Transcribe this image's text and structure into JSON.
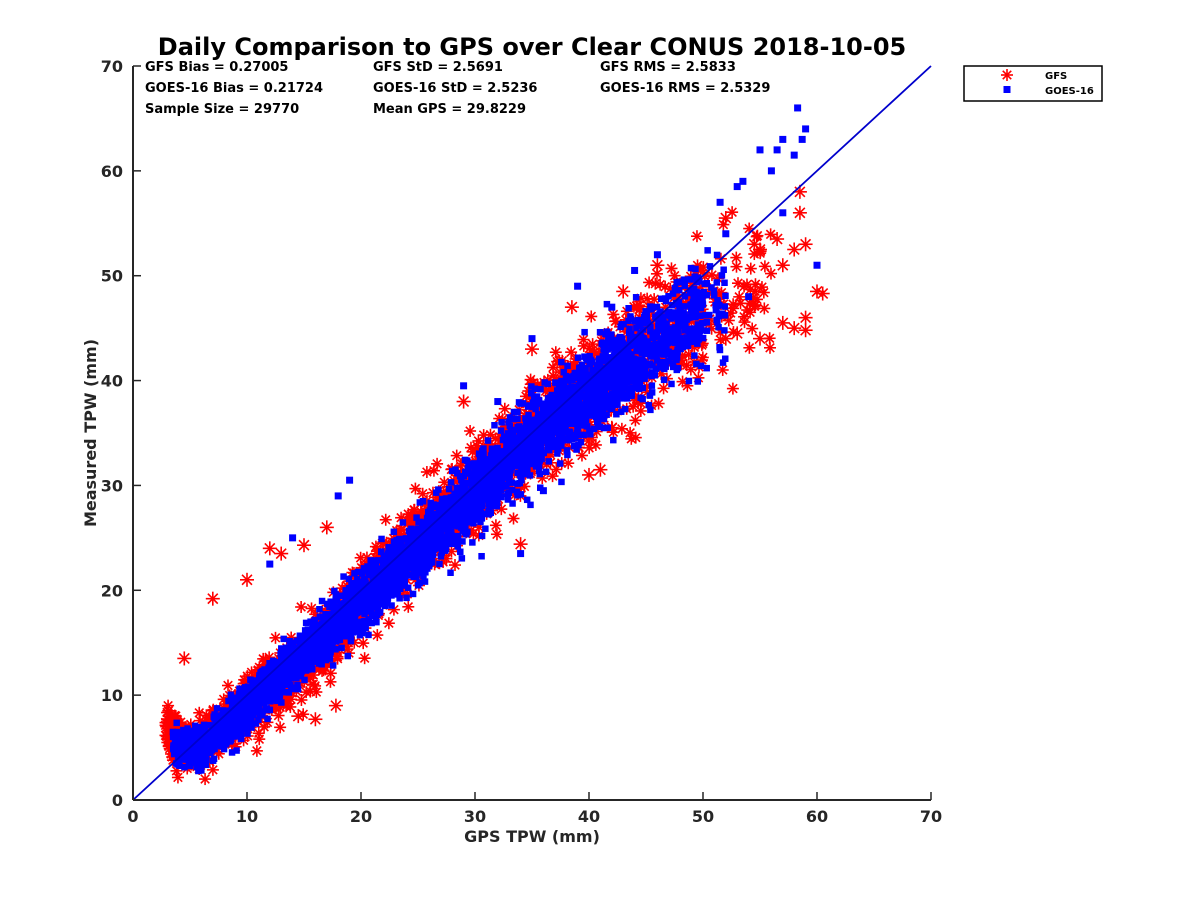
{
  "chart_data": {
    "type": "scatter",
    "title": "Daily Comparison to GPS over Clear CONUS 2018-10-05",
    "xlabel": "GPS TPW (mm)",
    "ylabel": "Measured TPW (mm)",
    "xlim": [
      0,
      70
    ],
    "ylim": [
      0,
      70
    ],
    "xticks": [
      "0",
      "10",
      "20",
      "30",
      "40",
      "50",
      "60",
      "70"
    ],
    "yticks": [
      "0",
      "10",
      "20",
      "30",
      "40",
      "50",
      "60",
      "70"
    ],
    "legend_position": "top-right-outside",
    "stats": [
      "GFS Bias = 0.27005",
      "GFS StD = 2.5691",
      "GFS RMS = 2.5833",
      "GOES-16 Bias = 0.21724",
      "GOES-16 StD = 2.5236",
      "GOES-16 RMS = 2.5329",
      "Sample Size = 29770",
      "Mean GPS = 29.8229"
    ],
    "reference_line": {
      "label": "1:1",
      "x": [
        0,
        70
      ],
      "y": [
        0,
        70
      ],
      "color": "#0000cc"
    },
    "series": [
      {
        "name": "GFS",
        "marker": "asterisk",
        "color": "#ff0000",
        "core_cloud": [
          [
            3,
            7
          ],
          [
            5,
            4.5
          ],
          [
            10,
            9
          ],
          [
            15,
            13
          ],
          [
            20,
            19
          ],
          [
            25,
            25
          ],
          [
            30,
            30
          ],
          [
            35,
            35
          ],
          [
            40,
            39
          ],
          [
            45,
            43
          ],
          [
            50,
            46
          ],
          [
            55,
            49
          ]
        ],
        "outliers": [
          [
            3,
            7
          ],
          [
            4.5,
            13.5
          ],
          [
            7,
            19.2
          ],
          [
            10,
            21
          ],
          [
            12,
            24
          ],
          [
            13,
            23.5
          ],
          [
            15,
            24.3
          ],
          [
            17,
            26
          ],
          [
            17.8,
            9
          ],
          [
            16,
            7.7
          ],
          [
            14.5,
            8
          ],
          [
            13.5,
            10
          ],
          [
            29,
            38
          ],
          [
            34,
            24.4
          ],
          [
            35,
            43
          ],
          [
            38.5,
            47
          ],
          [
            40,
            31
          ],
          [
            41,
            31.5
          ],
          [
            42,
            35.5
          ],
          [
            43,
            48.5
          ],
          [
            46,
            51
          ],
          [
            52,
            44
          ],
          [
            53,
            44.5
          ],
          [
            55,
            44
          ],
          [
            57,
            45.5
          ],
          [
            58,
            45
          ],
          [
            59,
            46
          ],
          [
            59,
            44.8
          ],
          [
            60,
            48.5
          ],
          [
            60.5,
            48.3
          ],
          [
            57,
            51
          ],
          [
            58,
            52.5
          ],
          [
            59,
            53
          ],
          [
            58.5,
            56
          ],
          [
            58.5,
            58
          ],
          [
            56.5,
            53.5
          ],
          [
            52,
            55.5
          ],
          [
            54.5,
            53
          ],
          [
            55,
            52.5
          ]
        ]
      },
      {
        "name": "GOES-16",
        "marker": "square",
        "color": "#0000ff",
        "core_cloud": [
          [
            4,
            5
          ],
          [
            6,
            5
          ],
          [
            10,
            9
          ],
          [
            15,
            14
          ],
          [
            20,
            19
          ],
          [
            25,
            24
          ],
          [
            30,
            29.5
          ],
          [
            35,
            34.5
          ],
          [
            40,
            39
          ],
          [
            45,
            43
          ],
          [
            50,
            47
          ]
        ],
        "outliers": [
          [
            4,
            4.5
          ],
          [
            12,
            22.5
          ],
          [
            14,
            25
          ],
          [
            18,
            29
          ],
          [
            19,
            30.5
          ],
          [
            29,
            39.5
          ],
          [
            32,
            38
          ],
          [
            34,
            23.5
          ],
          [
            35,
            44
          ],
          [
            39,
            49
          ],
          [
            42,
            47
          ],
          [
            44,
            50.5
          ],
          [
            46,
            52
          ],
          [
            52,
            54
          ],
          [
            51.5,
            57
          ],
          [
            53,
            58.5
          ],
          [
            53.5,
            59
          ],
          [
            55,
            62
          ],
          [
            56,
            60
          ],
          [
            56.5,
            62
          ],
          [
            57,
            56
          ],
          [
            57,
            63
          ],
          [
            58,
            61.5
          ],
          [
            58.3,
            66
          ],
          [
            58.7,
            63
          ],
          [
            59,
            64
          ],
          [
            60,
            51
          ],
          [
            54,
            48
          ],
          [
            47,
            46.5
          ],
          [
            36,
            29.5
          ],
          [
            32,
            31.5
          ],
          [
            33,
            34
          ]
        ]
      }
    ]
  }
}
